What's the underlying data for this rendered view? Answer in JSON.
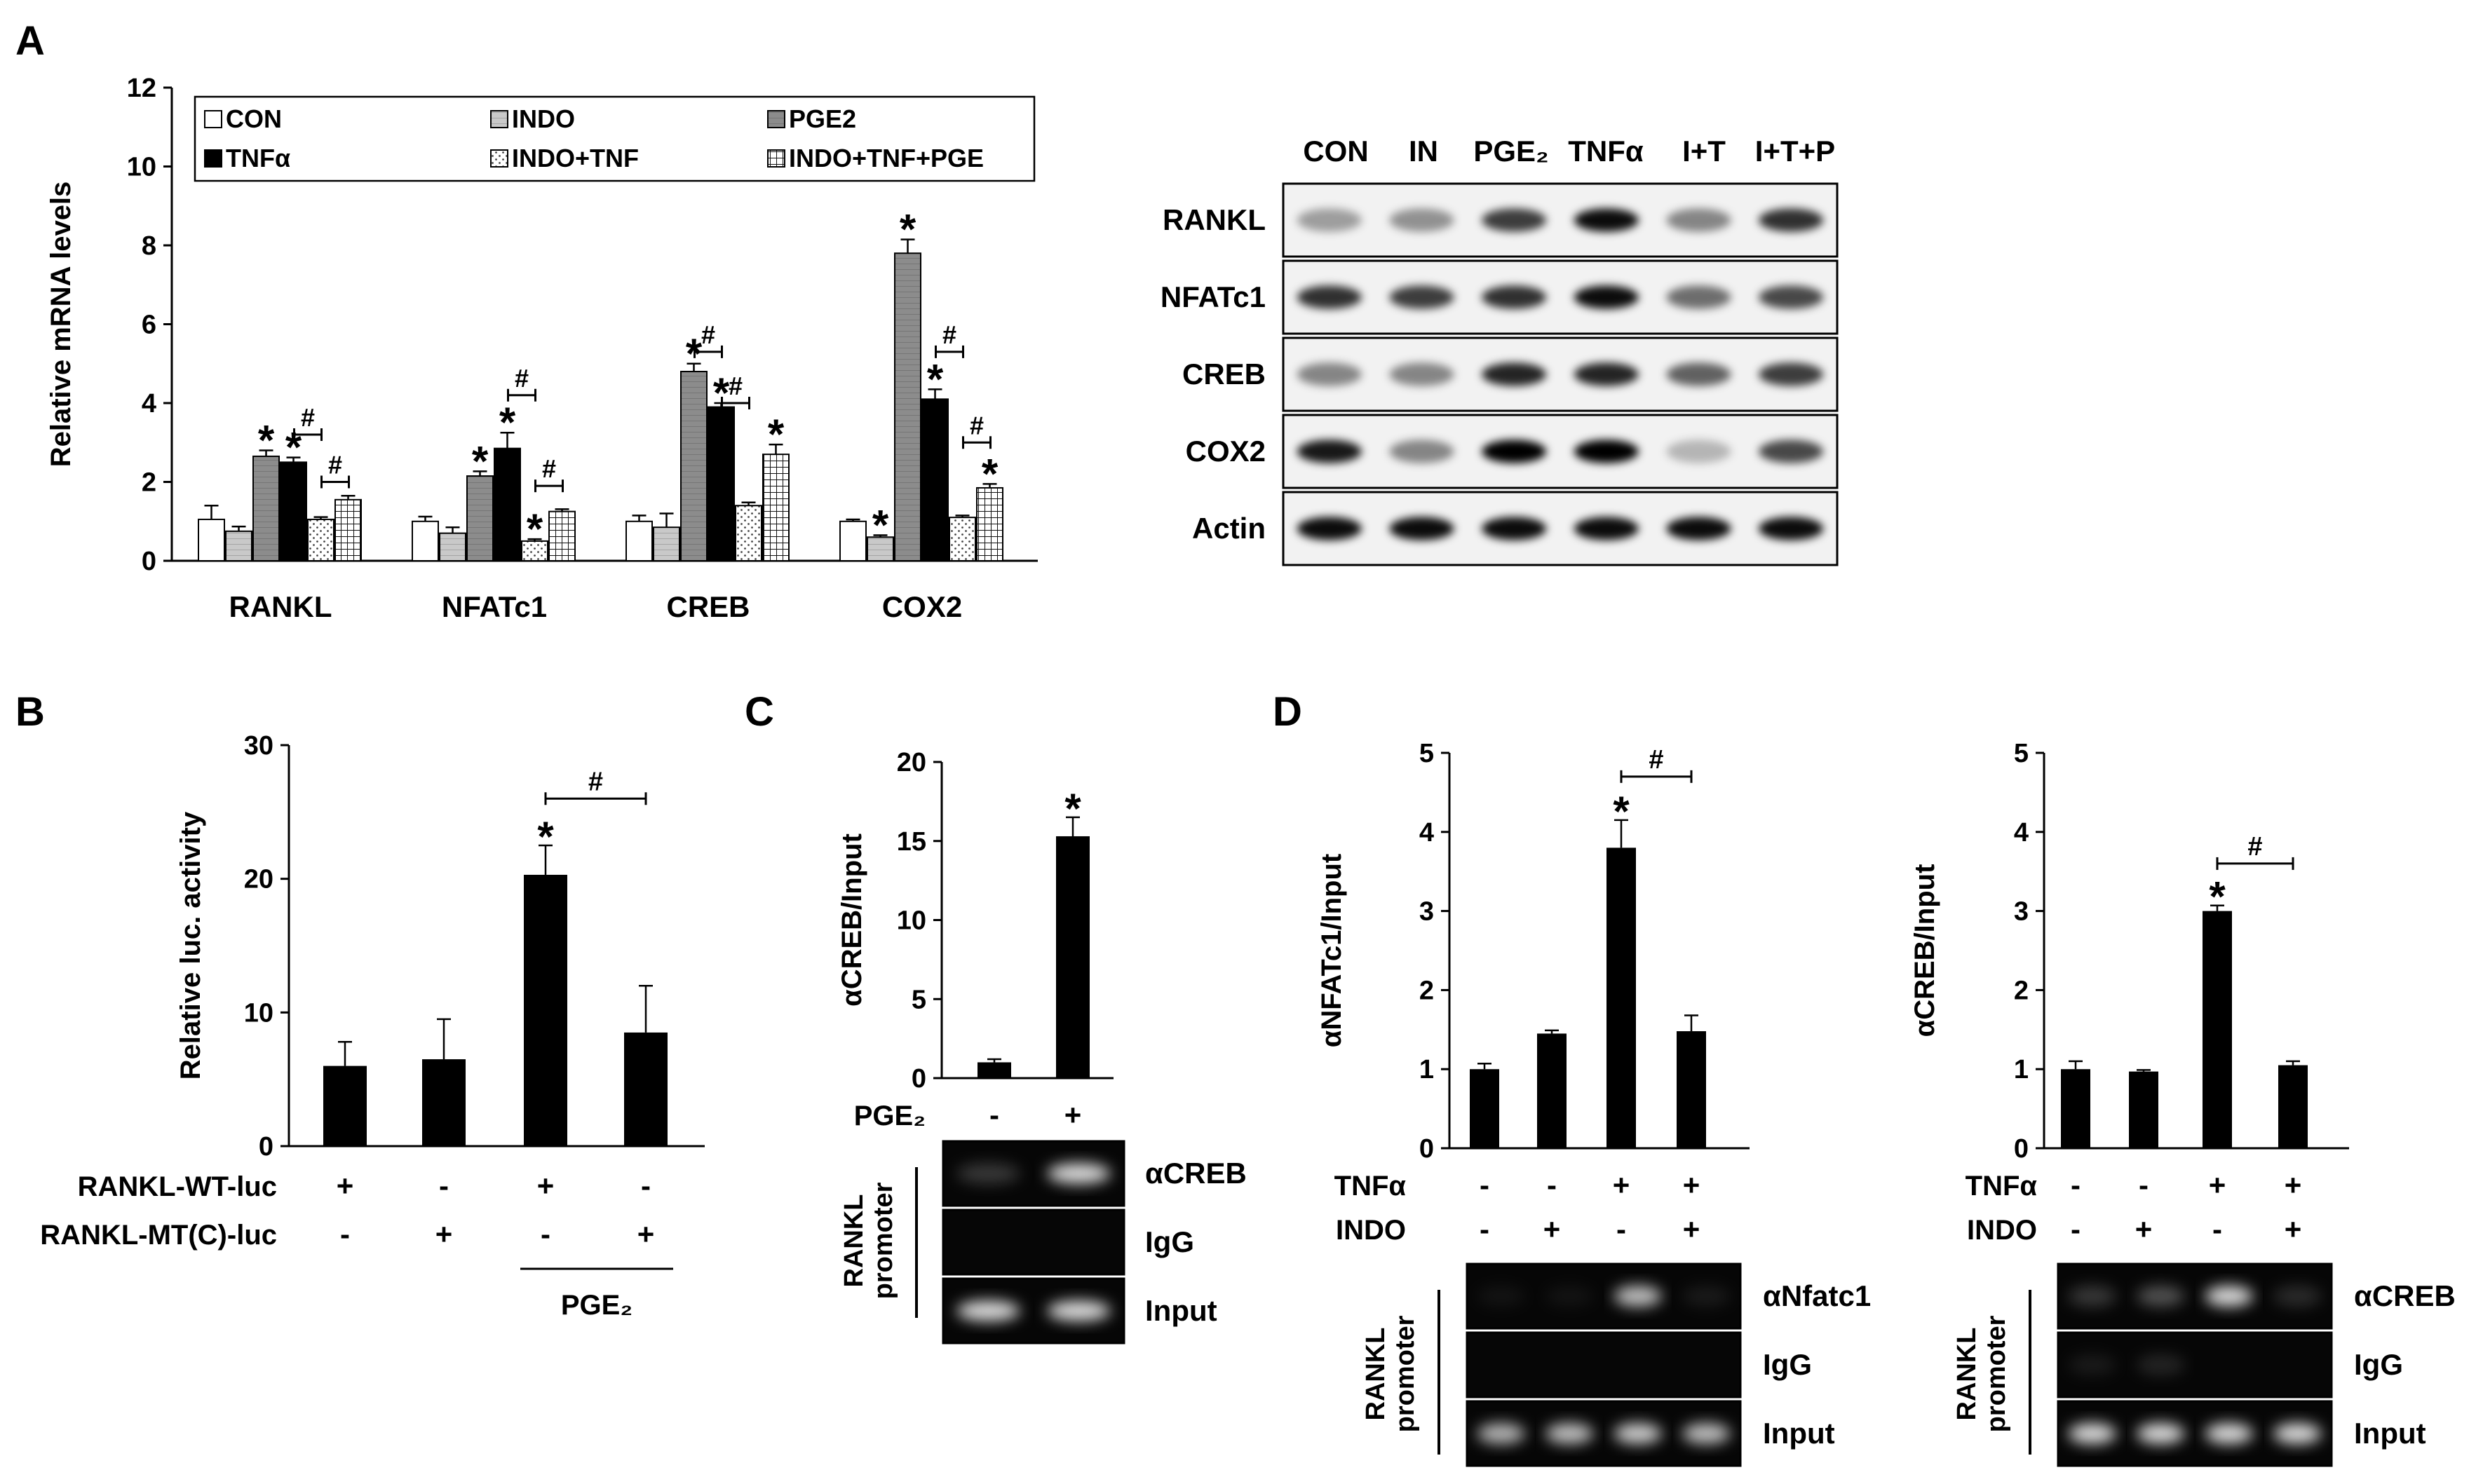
{
  "panel_labels": [
    "A",
    "B",
    "C",
    "D"
  ],
  "chart_data": [
    {
      "id": "A-chart",
      "type": "bar",
      "panel": "A",
      "ylabel": "Relative mRNA levels",
      "ylim": [
        0,
        12
      ],
      "yticks": [
        0,
        2,
        4,
        6,
        8,
        10,
        12
      ],
      "categories": [
        "RANKL",
        "NFATc1",
        "CREB",
        "COX2"
      ],
      "legend_position": "top",
      "series": [
        {
          "name": "CON",
          "values": [
            1.05,
            1.0,
            1.0,
            1.0
          ],
          "errors": [
            0.35,
            0.12,
            0.15,
            0.05
          ],
          "fill": "white"
        },
        {
          "name": "INDO",
          "values": [
            0.75,
            0.7,
            0.85,
            0.6
          ],
          "errors": [
            0.12,
            0.15,
            0.35,
            0.05
          ],
          "fill": "lightgray"
        },
        {
          "name": "PGE2",
          "values": [
            2.65,
            2.15,
            4.8,
            7.8
          ],
          "errors": [
            0.15,
            0.12,
            0.2,
            0.35
          ],
          "fill": "gray"
        },
        {
          "name": "TNFα",
          "values": [
            2.5,
            2.85,
            3.9,
            4.1
          ],
          "errors": [
            0.12,
            0.4,
            0.1,
            0.25
          ],
          "fill": "black"
        },
        {
          "name": "INDO+TNF",
          "values": [
            1.05,
            0.5,
            1.4,
            1.1
          ],
          "errors": [
            0.06,
            0.05,
            0.08,
            0.05
          ],
          "fill": "dots"
        },
        {
          "name": "INDO+TNF+PGE",
          "values": [
            1.55,
            1.25,
            2.7,
            1.85
          ],
          "errors": [
            0.1,
            0.06,
            0.25,
            0.1
          ],
          "fill": "grid"
        }
      ],
      "star_markers": [
        [
          0,
          2
        ],
        [
          0,
          3
        ],
        [
          1,
          2
        ],
        [
          1,
          3
        ],
        [
          1,
          4
        ],
        [
          2,
          2
        ],
        [
          2,
          3
        ],
        [
          2,
          5
        ],
        [
          3,
          1
        ],
        [
          3,
          2
        ],
        [
          3,
          3
        ],
        [
          3,
          5
        ]
      ],
      "hash_brackets": [
        {
          "category": 0,
          "from": 3,
          "to": 4,
          "y": 3.2
        },
        {
          "category": 0,
          "from": 4,
          "to": 5,
          "y": 2.0
        },
        {
          "category": 1,
          "from": 3,
          "to": 4,
          "y": 4.2
        },
        {
          "category": 1,
          "from": 4,
          "to": 5,
          "y": 1.9
        },
        {
          "category": 2,
          "from": 2,
          "to": 3,
          "y": 5.3
        },
        {
          "category": 2,
          "from": 3,
          "to": 4,
          "y": 4.0
        },
        {
          "category": 3,
          "from": 3,
          "to": 4,
          "y": 5.3
        },
        {
          "category": 3,
          "from": 4,
          "to": 5,
          "y": 3.0
        }
      ],
      "hash_symbol": "#",
      "star_symbol": "*"
    },
    {
      "id": "B-chart",
      "type": "bar",
      "panel": "B",
      "ylabel": "Relative luc. activity",
      "ylim": [
        0,
        30
      ],
      "yticks": [
        0,
        10,
        20,
        30
      ],
      "values": [
        6,
        6.5,
        20.3,
        8.5
      ],
      "errors": [
        1.8,
        3.0,
        2.2,
        3.5
      ],
      "condition_rows": [
        {
          "label": "RANKL-WT-luc",
          "signs": [
            "+",
            "-",
            "+",
            "-"
          ]
        },
        {
          "label": "RANKL-MT(C)-luc",
          "signs": [
            "-",
            "+",
            "-",
            "+"
          ]
        }
      ],
      "group_label": "PGE₂",
      "star_markers": [
        2
      ],
      "hash_brackets": [
        {
          "from": 2,
          "to": 3,
          "y": 26
        }
      ]
    },
    {
      "id": "C-chart",
      "type": "bar",
      "panel": "C",
      "ylabel": "αCREB/Input",
      "ylim": [
        0,
        20
      ],
      "yticks": [
        0,
        5,
        10,
        15,
        20
      ],
      "values": [
        1.0,
        15.3
      ],
      "errors": [
        0.2,
        1.2
      ],
      "condition_rows": [
        {
          "label": "PGE₂",
          "signs": [
            "-",
            "+"
          ]
        }
      ],
      "star_markers": [
        1
      ]
    },
    {
      "id": "D1-chart",
      "type": "bar",
      "panel": "D",
      "ylabel": "αNFATc1/Input",
      "ylim": [
        0,
        5
      ],
      "yticks": [
        0,
        1,
        2,
        3,
        4,
        5
      ],
      "values": [
        1.0,
        1.45,
        3.8,
        1.48
      ],
      "errors": [
        0.07,
        0.04,
        0.35,
        0.2
      ],
      "condition_rows": [
        {
          "label": "TNFα",
          "signs": [
            "-",
            "-",
            "+",
            "+"
          ]
        },
        {
          "label": "INDO",
          "signs": [
            "-",
            "+",
            "-",
            "+"
          ]
        }
      ],
      "star_markers": [
        2
      ],
      "hash_brackets": [
        {
          "from": 2,
          "to": 3,
          "y": 4.7
        }
      ]
    },
    {
      "id": "D2-chart",
      "type": "bar",
      "panel": "D",
      "ylabel": "αCREB/Input",
      "ylim": [
        0,
        5
      ],
      "yticks": [
        0,
        1,
        2,
        3,
        4,
        5
      ],
      "values": [
        1.0,
        0.97,
        3.0,
        1.05
      ],
      "errors": [
        0.1,
        0.02,
        0.07,
        0.05
      ],
      "condition_rows": [
        {
          "label": "TNFα",
          "signs": [
            "-",
            "-",
            "+",
            "+"
          ]
        },
        {
          "label": "INDO",
          "signs": [
            "-",
            "+",
            "-",
            "+"
          ]
        }
      ],
      "star_markers": [
        2
      ],
      "hash_brackets": [
        {
          "from": 2,
          "to": 3,
          "y": 3.6
        }
      ]
    }
  ],
  "blots": {
    "western": {
      "lanes": [
        "CON",
        "IN",
        "PGE₂",
        "TNFα",
        "I+T",
        "I+T+P"
      ],
      "rows": [
        {
          "label": "RANKL",
          "intensity": [
            0.35,
            0.4,
            0.75,
            0.95,
            0.45,
            0.8
          ]
        },
        {
          "label": "NFATc1",
          "intensity": [
            0.8,
            0.75,
            0.8,
            0.95,
            0.55,
            0.7
          ]
        },
        {
          "label": "CREB",
          "intensity": [
            0.45,
            0.45,
            0.85,
            0.85,
            0.6,
            0.75
          ]
        },
        {
          "label": "COX2",
          "intensity": [
            0.9,
            0.45,
            1.0,
            1.0,
            0.25,
            0.7
          ]
        },
        {
          "label": "Actin",
          "intensity": [
            0.95,
            0.95,
            0.95,
            0.95,
            0.95,
            0.95
          ]
        }
      ]
    },
    "chip_C": {
      "side_label": [
        "RANKL",
        "promoter"
      ],
      "rows": [
        {
          "label": "αCREB",
          "intensity": [
            0.2,
            0.85
          ]
        },
        {
          "label": "IgG",
          "intensity": [
            0.0,
            0.0
          ]
        },
        {
          "label": "Input",
          "intensity": [
            0.85,
            0.85
          ]
        }
      ]
    },
    "chip_D1": {
      "side_label": [
        "RANKL",
        "promoter"
      ],
      "rows": [
        {
          "label": "αNfatc1",
          "intensity": [
            0.05,
            0.05,
            0.75,
            0.08
          ]
        },
        {
          "label": "IgG",
          "intensity": [
            0.0,
            0.0,
            0.0,
            0.0
          ]
        },
        {
          "label": "Input",
          "intensity": [
            0.7,
            0.75,
            0.8,
            0.75
          ]
        }
      ]
    },
    "chip_D2": {
      "side_label": [
        "RANKL",
        "promoter"
      ],
      "rows": [
        {
          "label": "αCREB",
          "intensity": [
            0.2,
            0.3,
            0.85,
            0.15
          ]
        },
        {
          "label": "IgG",
          "intensity": [
            0.08,
            0.12,
            0.0,
            0.0
          ]
        },
        {
          "label": "Input",
          "intensity": [
            0.85,
            0.85,
            0.85,
            0.85
          ]
        }
      ]
    }
  }
}
